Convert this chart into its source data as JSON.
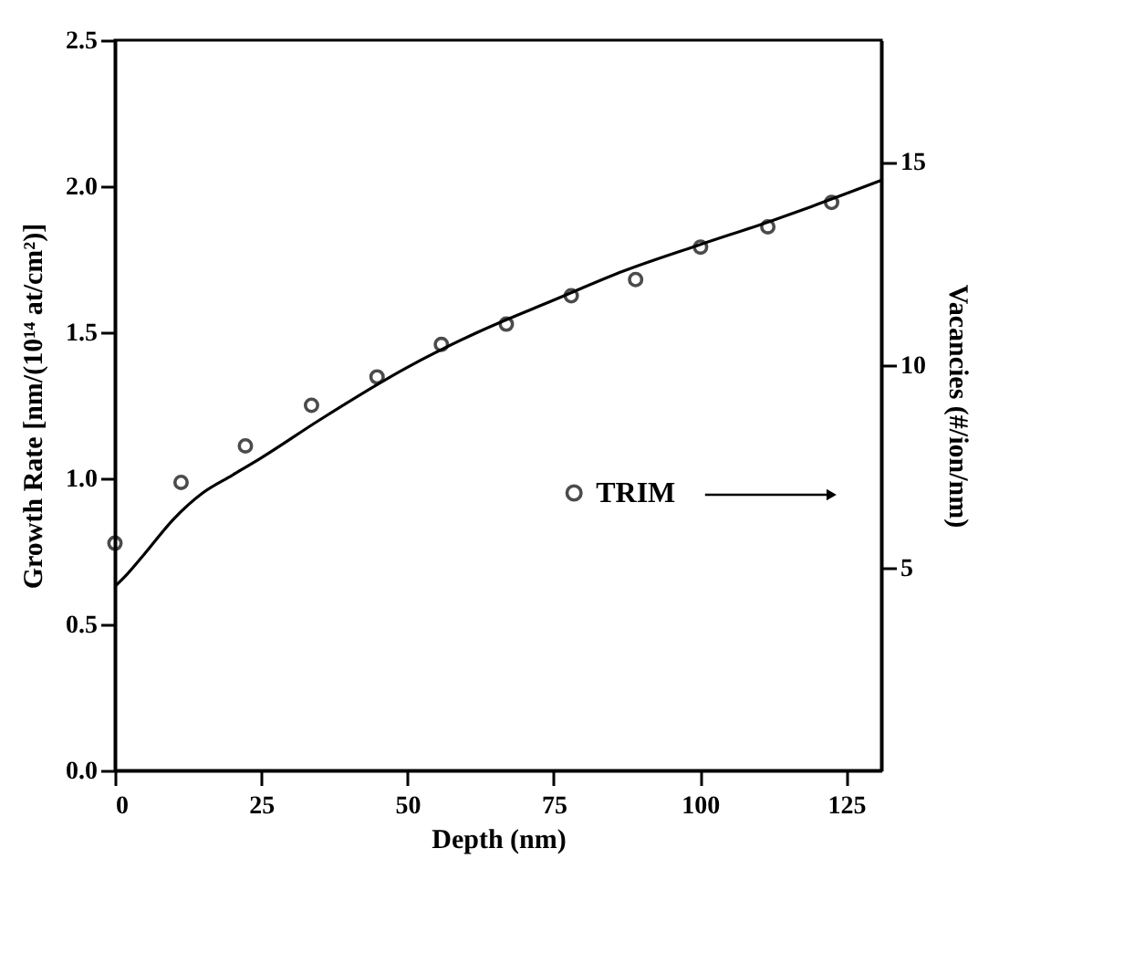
{
  "chart_data": {
    "type": "line",
    "xlabel": "Depth (nm)",
    "ylabel": "Growth Rate [nm/(10¹⁴ at/cm²)]",
    "y2label": "Vacancies (#/ion/nm)",
    "xlim": [
      0,
      131
    ],
    "xticks": [
      0,
      25,
      50,
      75,
      100,
      125
    ],
    "ylim": [
      0,
      2.5
    ],
    "yticks": [
      {
        "value": 0,
        "label": "0.0"
      },
      {
        "value": 0.5,
        "label": "0.5"
      },
      {
        "value": 1,
        "label": "1.0"
      },
      {
        "value": 1.5,
        "label": "1.5"
      },
      {
        "value": 2,
        "label": "2.0"
      },
      {
        "value": 2.5,
        "label": "2.5"
      }
    ],
    "y2lim": [
      0,
      18
    ],
    "y2ticks": [
      5,
      10,
      15
    ],
    "grid": false,
    "legend": "right",
    "series": [
      {
        "type": "line",
        "color": "#000000",
        "marker": "none",
        "line_style": "solid",
        "x": [
          0,
          2,
          5,
          10,
          15,
          20,
          25,
          35,
          50,
          62,
          75,
          87,
          100,
          112,
          119,
          131
        ],
        "values": [
          0.63,
          0.67,
          0.74,
          0.86,
          0.95,
          1.01,
          1.07,
          1.2,
          1.38,
          1.5,
          1.61,
          1.71,
          1.8,
          1.88,
          1.93,
          2.02
        ]
      },
      {
        "name": "TRIM",
        "type": "scatter",
        "axis": "y2",
        "color": "#000000",
        "marker": "circle",
        "x": [
          0,
          11.3,
          22.3,
          33.6,
          44.8,
          55.8,
          66.9,
          78,
          89,
          100.1,
          111.6,
          122.5
        ],
        "values": [
          5.6,
          7.1,
          8.0,
          9.0,
          9.7,
          10.5,
          11.0,
          11.7,
          12.1,
          12.9,
          13.4,
          14.0
        ]
      }
    ]
  }
}
